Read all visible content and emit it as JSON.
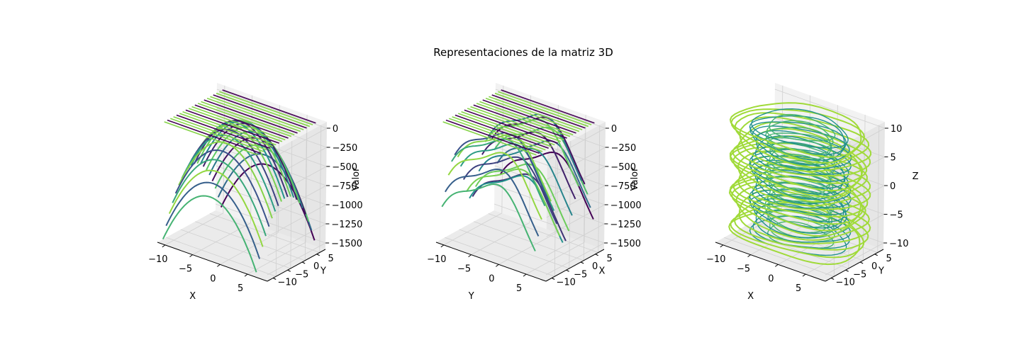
{
  "figure": {
    "title": "Representaciones de la matriz 3D"
  },
  "colors": {
    "background": "#ffffff",
    "pane_back": "#f2f2f2",
    "pane_side": "#e6e6e6",
    "pane_floor": "#ebebeb",
    "grid": "#d0d0d0",
    "axis_line": "#000000",
    "colormap": "viridis",
    "colormap_stops": [
      "#440154",
      "#3b528b",
      "#21918c",
      "#5ec962",
      "#a0da39"
    ]
  },
  "chart_data": [
    {
      "type": "line",
      "subtype": "3d-contour-projection",
      "title": "",
      "xlabel": "X",
      "ylabel": "Y",
      "zlabel": "Valor",
      "xlim": [
        -10,
        10
      ],
      "ylim": [
        -10,
        10
      ],
      "zlim": [
        -1600,
        0
      ],
      "xticks": [
        "−10",
        "−5",
        "0",
        "5"
      ],
      "yticks": [
        "−10",
        "−5",
        "0",
        "5"
      ],
      "zticks": [
        "0",
        "−250",
        "−500",
        "−750",
        "−1000",
        "−1250",
        "−1500"
      ],
      "surface": "bowl",
      "series_count": 20,
      "z_min_approx": -1600
    },
    {
      "type": "line",
      "subtype": "3d-contour-projection",
      "title": "",
      "xlabel": "Y",
      "ylabel": "X",
      "zlabel": "Valor",
      "xlim": [
        -10,
        10
      ],
      "ylim": [
        -10,
        10
      ],
      "zlim": [
        -1600,
        0
      ],
      "xticks": [
        "−10",
        "−5",
        "0",
        "5"
      ],
      "yticks": [
        "−10",
        "−5",
        "0",
        "5"
      ],
      "zticks": [
        "0",
        "−250",
        "−500",
        "−750",
        "−1000",
        "−1250",
        "−1500"
      ],
      "surface": "double-well",
      "series_count": 20,
      "z_min_approx": -1600
    },
    {
      "type": "line",
      "subtype": "3d-contour-slices",
      "title": "",
      "xlabel": "X",
      "ylabel": "Y",
      "zlabel": "Z",
      "xlim": [
        -10,
        10
      ],
      "ylim": [
        -10,
        10
      ],
      "zlim": [
        -10,
        10
      ],
      "xticks": [
        "−10",
        "−5",
        "0",
        "5"
      ],
      "yticks": [
        "−10",
        "−5",
        "0",
        "5"
      ],
      "zticks": [
        "10",
        "5",
        "0",
        "−5",
        "−10"
      ],
      "surface": "stacked-slices",
      "slice_count": 20
    }
  ]
}
